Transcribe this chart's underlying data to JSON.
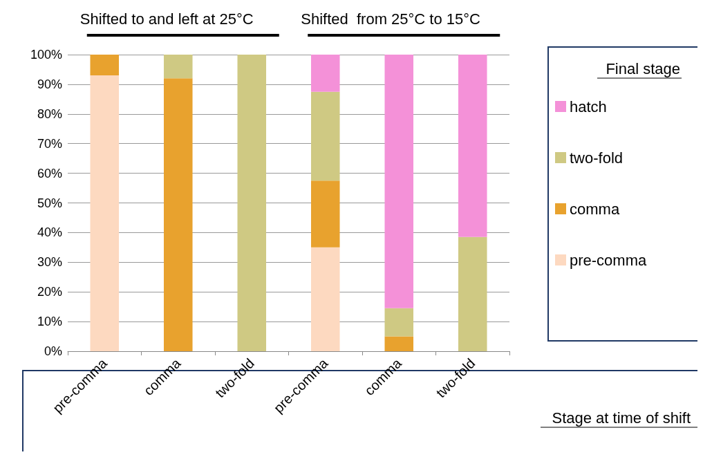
{
  "chart_data": {
    "type": "bar",
    "stacked": true,
    "xlabel": "Stage at time of shift",
    "legend_title": "Final stage",
    "legend": "right",
    "grid": "y",
    "annotations": [
      "Shifted to and left at 25°C",
      "Shifted  from 25°C to 15°C"
    ],
    "categories": [
      "pre-comma",
      "comma",
      "two-fold",
      "pre-comma",
      "comma",
      "two-fold"
    ],
    "ylim": [
      0,
      100
    ],
    "yticks": [
      {
        "value": 0,
        "label": "0%"
      },
      {
        "value": 10,
        "label": "10%"
      },
      {
        "value": 20,
        "label": "20%"
      },
      {
        "value": 30,
        "label": "30%"
      },
      {
        "value": 40,
        "label": "40%"
      },
      {
        "value": 50,
        "label": "50%"
      },
      {
        "value": 60,
        "label": "60%"
      },
      {
        "value": 70,
        "label": "70%"
      },
      {
        "value": 80,
        "label": "80%"
      },
      {
        "value": 90,
        "label": "90%"
      },
      {
        "value": 100,
        "label": "100%"
      }
    ],
    "series": [
      {
        "name": "pre-comma",
        "color": "#fdd9c0",
        "values": [
          93,
          0,
          0,
          35,
          0,
          0
        ]
      },
      {
        "name": "comma",
        "color": "#e8a22e",
        "values": [
          7,
          92,
          0,
          22.5,
          5,
          0
        ]
      },
      {
        "name": "two-fold",
        "color": "#cfc983",
        "values": [
          0,
          8,
          100,
          30,
          9.5,
          38.5
        ]
      },
      {
        "name": "hatch",
        "color": "#f491d8",
        "values": [
          0,
          0,
          0,
          12.5,
          85.5,
          61.5
        ]
      }
    ]
  }
}
